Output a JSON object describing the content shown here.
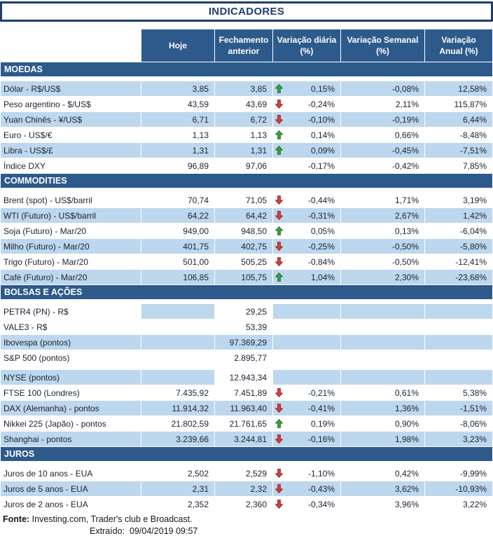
{
  "title": "INDICADORES",
  "colors": {
    "header_bar": "#2D5A8B",
    "title": "#1F3E6B",
    "row_alt": "#BDD7EE",
    "arrow_up": "#3BA03B",
    "arrow_down": "#DE3B3B"
  },
  "chart_data": {
    "type": "table",
    "columns": [
      "Hoje",
      "Fechamento\nanterior",
      "Variação diária\n(%)",
      "Variação Semanal\n(%)",
      "Variação\nAnual (%)"
    ],
    "sections": [
      {
        "name": "MOEDAS",
        "rows": [
          {
            "label": "Dólar - R$/US$",
            "hoje": "3,85",
            "fech": "3,85",
            "arrow": "up",
            "vd": "0,15%",
            "vs": "-0,08%",
            "va": "12,58%",
            "bg": "blue"
          },
          {
            "label": "Peso argentino - $/US$",
            "hoje": "43,59",
            "fech": "43,69",
            "arrow": "down",
            "vd": "-0,24%",
            "vs": "2,11%",
            "va": "115,87%",
            "bg": "white"
          },
          {
            "label": "Yuan Chinês - ¥/US$",
            "hoje": "6,71",
            "fech": "6,72",
            "arrow": "down",
            "vd": "-0,10%",
            "vs": "-0,19%",
            "va": "6,44%",
            "bg": "blue"
          },
          {
            "label": "Euro - US$/€",
            "hoje": "1,13",
            "fech": "1,13",
            "arrow": "up",
            "vd": "0,14%",
            "vs": "0,66%",
            "va": "-8,48%",
            "bg": "white"
          },
          {
            "label": "Libra - US$/£",
            "hoje": "1,31",
            "fech": "1,31",
            "arrow": "up",
            "vd": "0,09%",
            "vs": "-0,45%",
            "va": "-7,51%",
            "bg": "blue"
          },
          {
            "label": "Índice DXY",
            "hoje": "96,89",
            "fech": "97,06",
            "arrow": null,
            "vd": "-0,17%",
            "vs": "-0,42%",
            "va": "7,85%",
            "bg": "white"
          }
        ]
      },
      {
        "name": "COMMODITIES",
        "rows": [
          {
            "label": "Brent (spot) - US$/barril",
            "hoje": "70,74",
            "fech": "71,05",
            "arrow": "down",
            "vd": "-0,44%",
            "vs": "1,71%",
            "va": "3,19%",
            "bg": "white"
          },
          {
            "label": "WTI (Futuro) - US$/barril",
            "hoje": "64,22",
            "fech": "64,42",
            "arrow": "down",
            "vd": "-0,31%",
            "vs": "2,67%",
            "va": "1,42%",
            "bg": "blue"
          },
          {
            "label": "Soja (Futuro) - Mar/20",
            "hoje": "949,00",
            "fech": "948,50",
            "arrow": "up",
            "vd": "0,05%",
            "vs": "0,13%",
            "va": "-6,04%",
            "bg": "white"
          },
          {
            "label": "Milho (Futuro) - Mar/20",
            "hoje": "401,75",
            "fech": "402,75",
            "arrow": "down",
            "vd": "-0,25%",
            "vs": "-0,50%",
            "va": "-5,80%",
            "bg": "blue"
          },
          {
            "label": "Trigo (Futuro) - Mar/20",
            "hoje": "501,00",
            "fech": "505,25",
            "arrow": "down",
            "vd": "-0,84%",
            "vs": "-0,50%",
            "va": "-12,41%",
            "bg": "white"
          },
          {
            "label": "Café (Futuro) - Mar/20",
            "hoje": "106,85",
            "fech": "105,75",
            "arrow": "up",
            "vd": "1,04%",
            "vs": "2,30%",
            "va": "-23,68%",
            "bg": "blue"
          }
        ]
      },
      {
        "name": "BOLSAS E AÇÕES",
        "rows": [
          {
            "label": "PETR4 (PN) - R$",
            "hoje": "",
            "fech": "29,25",
            "arrow": null,
            "vd": "",
            "vs": "",
            "va": "",
            "bg": "white",
            "cells": {
              "hoje": "blue",
              "vd": "blue",
              "vs": "blue",
              "va": "blue"
            }
          },
          {
            "label": "VALE3 - R$",
            "hoje": "",
            "fech": "53,39",
            "arrow": null,
            "vd": "",
            "vs": "",
            "va": "",
            "bg": "white"
          },
          {
            "label": "Ibovespa (pontos)",
            "hoje": "",
            "fech": "97.369,29",
            "arrow": null,
            "vd": "",
            "vs": "",
            "va": "",
            "bg": "blue"
          },
          {
            "label": "S&P 500 (pontos)",
            "hoje": "",
            "fech": "2.895,77",
            "arrow": null,
            "vd": "",
            "vs": "",
            "va": "",
            "bg": "white"
          },
          {
            "spacer": 5
          },
          {
            "label": "NYSE (pontos)",
            "hoje": "",
            "fech": "12.943,34",
            "arrow": null,
            "vd": "",
            "vs": "",
            "va": "",
            "bg": "blue",
            "cells": {
              "fech": "white"
            }
          },
          {
            "label": "FTSE 100 (Londres)",
            "hoje": "7.435,92",
            "fech": "7.451,89",
            "arrow": "down",
            "vd": "-0,21%",
            "vs": "0,61%",
            "va": "5,38%",
            "bg": "white"
          },
          {
            "label": "DAX (Alemanha) - pontos",
            "hoje": "11.914,32",
            "fech": "11.963,40",
            "arrow": "down",
            "vd": "-0,41%",
            "vs": "1,36%",
            "va": "-1,51%",
            "bg": "blue"
          },
          {
            "label": "Nikkei 225 (Japão) - pontos",
            "hoje": "21.802,59",
            "fech": "21.761,65",
            "arrow": "up",
            "vd": "0,19%",
            "vs": "0,90%",
            "va": "-8,06%",
            "bg": "white"
          },
          {
            "label": "Shanghai - pontos",
            "hoje": "3.239,66",
            "fech": "3.244,81",
            "arrow": "down",
            "vd": "-0,16%",
            "vs": "1,98%",
            "va": "3,23%",
            "bg": "blue"
          }
        ]
      },
      {
        "name": "JUROS",
        "rows": [
          {
            "label": "Juros de 10 anos - EUA",
            "hoje": "2,502",
            "fech": "2,529",
            "arrow": "down",
            "vd": "-1,10%",
            "vs": "0,42%",
            "va": "-9,99%",
            "bg": "white"
          },
          {
            "label": "Juros de 5 anos - EUA",
            "hoje": "2,31",
            "fech": "2,32",
            "arrow": "down",
            "vd": "-0,43%",
            "vs": "3,62%",
            "va": "-10,93%",
            "bg": "blue"
          },
          {
            "label": "Juros de 2 anos - EUA",
            "hoje": "2,352",
            "fech": "2,360",
            "arrow": "down",
            "vd": "-0,34%",
            "vs": "3,96%",
            "va": "3,22%",
            "bg": "white"
          }
        ]
      }
    ]
  },
  "footer": {
    "source_label": "Fonte:",
    "source_text": "Investing.com, Trader's club e Broadcast.",
    "extracted_label": "Extraído:",
    "extracted_value": "09/04/2019 09:57"
  }
}
